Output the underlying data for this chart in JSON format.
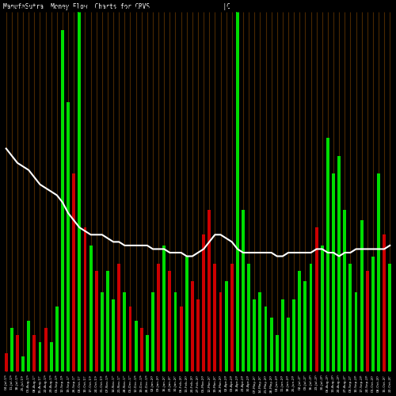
{
  "title": "ManufaSutra  Money Flow  Charts for CRVS                    |C                                              orvus Phar",
  "background_color": "#000000",
  "bar_color_positive": "#00dd00",
  "bar_color_negative": "#cc0000",
  "bar_grid_color": "#4a2800",
  "line_color": "#ffffff",
  "categories": [
    "04-Jul-19",
    "11-Jul-19",
    "18-Jul-19",
    "25-Jul-19",
    "01-Aug-19",
    "08-Aug-19",
    "15-Aug-19",
    "22-Aug-19",
    "29-Aug-19",
    "05-Sep-19",
    "12-Sep-19",
    "19-Sep-19",
    "26-Sep-19",
    "03-Oct-19",
    "10-Oct-19",
    "17-Oct-19",
    "24-Oct-19",
    "31-Oct-19",
    "07-Nov-19",
    "14-Nov-19",
    "21-Nov-19",
    "28-Nov-19",
    "05-Dec-19",
    "12-Dec-19",
    "19-Dec-19",
    "26-Dec-19",
    "02-Jan-20",
    "09-Jan-20",
    "16-Jan-20",
    "23-Jan-20",
    "30-Jan-20",
    "06-Feb-20",
    "13-Feb-20",
    "20-Feb-20",
    "27-Feb-20",
    "05-Mar-20",
    "12-Mar-20",
    "19-Mar-20",
    "26-Mar-20",
    "02-Apr-20",
    "09-Apr-20",
    "16-Apr-20",
    "23-Apr-20",
    "30-Apr-20",
    "07-May-20",
    "14-May-20",
    "21-May-20",
    "28-May-20",
    "04-Jun-20",
    "11-Jun-20",
    "18-Jun-20",
    "25-Jun-20",
    "02-Jul-20",
    "09-Jul-20",
    "16-Jul-20",
    "23-Jul-20",
    "30-Jul-20",
    "06-Aug-20",
    "13-Aug-20",
    "20-Aug-20",
    "27-Aug-20",
    "03-Sep-20",
    "10-Sep-20",
    "17-Sep-20",
    "24-Sep-20",
    "01-Oct-20",
    "08-Oct-20",
    "15-Oct-20",
    "22-Oct-20"
  ],
  "bar_heights": [
    5,
    12,
    10,
    4,
    14,
    10,
    8,
    12,
    8,
    18,
    95,
    75,
    55,
    100,
    40,
    35,
    28,
    22,
    28,
    20,
    30,
    22,
    18,
    14,
    12,
    10,
    22,
    30,
    35,
    28,
    22,
    18,
    32,
    25,
    20,
    38,
    45,
    30,
    22,
    25,
    30,
    100,
    45,
    30,
    20,
    22,
    18,
    15,
    10,
    20,
    15,
    20,
    28,
    25,
    30,
    40,
    35,
    65,
    55,
    60,
    45,
    30,
    22,
    42,
    28,
    32,
    55,
    38,
    30
  ],
  "bar_is_positive": [
    false,
    true,
    false,
    true,
    true,
    false,
    true,
    false,
    true,
    true,
    true,
    true,
    false,
    true,
    false,
    true,
    false,
    true,
    true,
    true,
    false,
    true,
    false,
    true,
    false,
    true,
    true,
    false,
    true,
    false,
    true,
    false,
    true,
    false,
    false,
    false,
    false,
    false,
    false,
    true,
    false,
    true,
    true,
    true,
    true,
    true,
    true,
    true,
    true,
    true,
    true,
    true,
    true,
    true,
    true,
    false,
    true,
    true,
    true,
    true,
    true,
    true,
    true,
    true,
    false,
    true,
    true,
    false,
    true
  ],
  "line_values": [
    62,
    60,
    58,
    57,
    56,
    54,
    52,
    51,
    50,
    49,
    47,
    44,
    42,
    40,
    39,
    38,
    38,
    38,
    37,
    36,
    36,
    35,
    35,
    35,
    35,
    35,
    34,
    34,
    34,
    33,
    33,
    33,
    32,
    32,
    33,
    34,
    36,
    38,
    38,
    37,
    36,
    34,
    33,
    33,
    33,
    33,
    33,
    33,
    32,
    32,
    33,
    33,
    33,
    33,
    33,
    34,
    34,
    33,
    33,
    32,
    33,
    33,
    34,
    34,
    34,
    34,
    34,
    34,
    35
  ],
  "ylim": [
    0,
    100
  ],
  "line_ylim": [
    0,
    100
  ]
}
